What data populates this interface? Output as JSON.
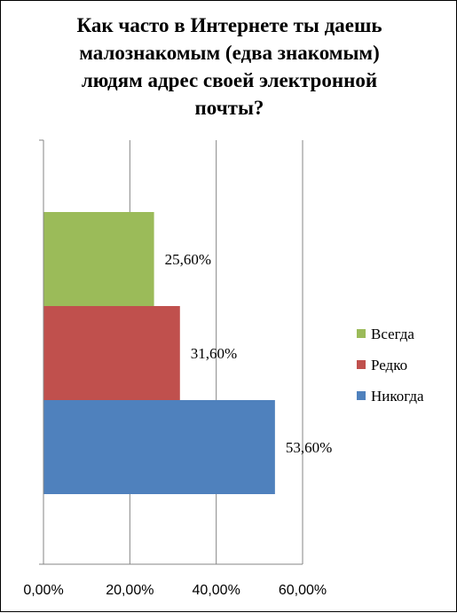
{
  "chart_data": {
    "type": "bar",
    "orientation": "horizontal",
    "title": "Как часто в Интернете  ты даешь малознакомым (едва знакомым) людям адрес своей электронной почты?",
    "title_lines": [
      "Как часто в Интернете  ты даешь",
      "малознакомым (едва знакомым)",
      "людям адрес своей электронной",
      "почты?"
    ],
    "series": [
      {
        "name": "Всегда",
        "value": 25.6,
        "label": "25,60%",
        "color": "#9BBB59"
      },
      {
        "name": "Редко",
        "value": 31.6,
        "label": "31,60%",
        "color": "#C0504D"
      },
      {
        "name": "Никогда",
        "value": 53.6,
        "label": "53,60%",
        "color": "#4F81BD"
      }
    ],
    "xlim": [
      0,
      60
    ],
    "x_ticks": [
      0,
      20,
      40,
      60
    ],
    "x_tick_labels": [
      "0,00%",
      "20,00%",
      "40,00%",
      "60,00%"
    ],
    "xlabel": "",
    "ylabel": "",
    "grid": "vertical",
    "legend_position": "right"
  }
}
